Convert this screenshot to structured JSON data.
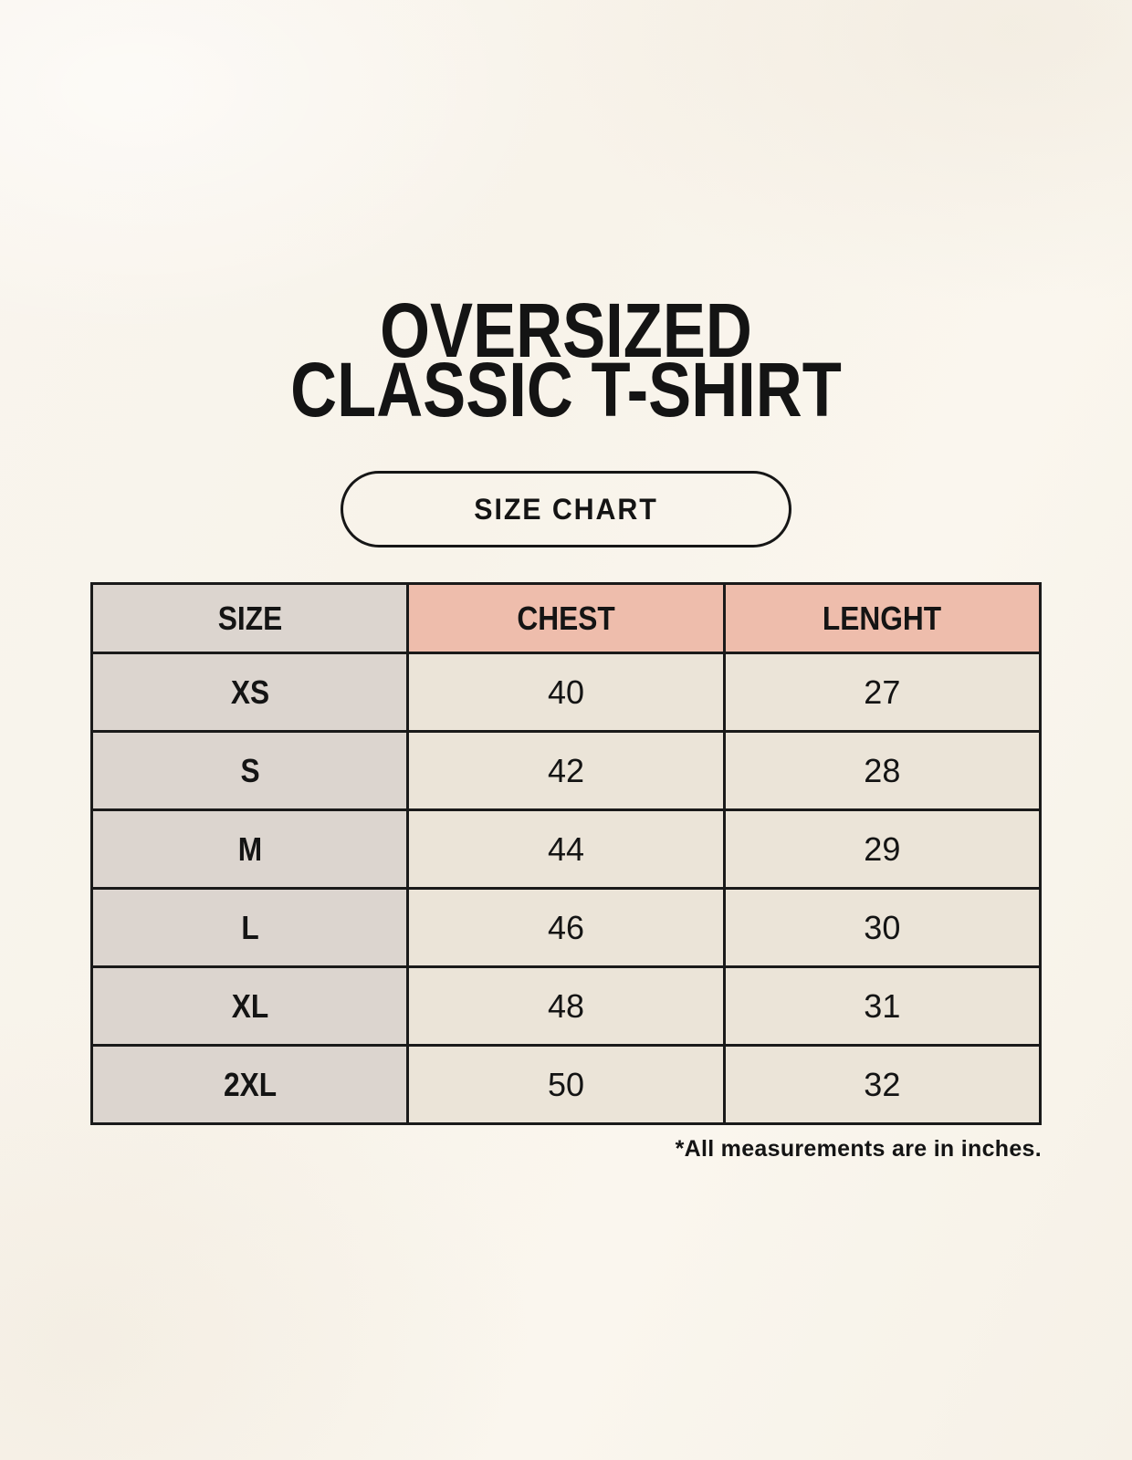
{
  "title": {
    "line1": "OVERSIZED",
    "line2": "CLASSIC T-SHIRT"
  },
  "button": {
    "label": "SIZE CHART"
  },
  "chart_data": {
    "type": "table",
    "title": "OVERSIZED CLASSIC T-SHIRT SIZE CHART",
    "columns": [
      "SIZE",
      "CHEST",
      "LENGHT"
    ],
    "rows": [
      [
        "XS",
        "40",
        "27"
      ],
      [
        "S",
        "42",
        "28"
      ],
      [
        "M",
        "44",
        "29"
      ],
      [
        "L",
        "46",
        "30"
      ],
      [
        "XL",
        "48",
        "31"
      ],
      [
        "2XL",
        "50",
        "32"
      ]
    ],
    "footnote": "*All measurements are in inches."
  },
  "colors": {
    "background": "#f8f4ec",
    "header_accent": "#eebdac",
    "size_column": "#dcd5cf",
    "value_cell": "#ebe4d8",
    "border": "#1a1a1a",
    "text": "#141414"
  }
}
